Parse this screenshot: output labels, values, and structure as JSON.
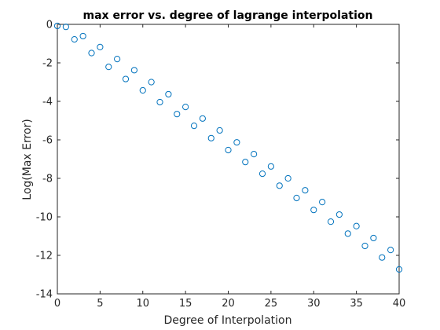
{
  "colors": {
    "marker": "#0072BD",
    "axis": "#262626",
    "background": "#ffffff"
  },
  "chart_data": {
    "type": "scatter",
    "title": "max error vs. degree of lagrange interpolation",
    "xlabel": "Degree of Interpolation",
    "ylabel": "Log(Max Error)",
    "xlim": [
      0,
      40
    ],
    "ylim": [
      -14,
      0
    ],
    "xticks": [
      0,
      5,
      10,
      15,
      20,
      25,
      30,
      35,
      40
    ],
    "yticks": [
      0,
      -2,
      -4,
      -6,
      -8,
      -10,
      -12,
      -14
    ],
    "xtick_labels": [
      "0",
      "5",
      "10",
      "15",
      "20",
      "25",
      "30",
      "35",
      "40"
    ],
    "ytick_labels": [
      "0",
      "-2",
      "-4",
      "-6",
      "-8",
      "-10",
      "-12",
      "-14"
    ],
    "grid": false,
    "marker": "o",
    "series": [
      {
        "name": "max error",
        "x": [
          0,
          1,
          2,
          3,
          4,
          5,
          6,
          7,
          8,
          9,
          10,
          11,
          12,
          13,
          14,
          15,
          16,
          17,
          18,
          19,
          20,
          21,
          22,
          23,
          24,
          25,
          26,
          27,
          28,
          29,
          30,
          31,
          32,
          33,
          34,
          35,
          36,
          37,
          38,
          39,
          40
        ],
        "y": [
          -0.08,
          -0.13,
          -0.78,
          -0.61,
          -1.49,
          -1.18,
          -2.21,
          -1.8,
          -2.84,
          -2.38,
          -3.43,
          -3.0,
          -4.04,
          -3.63,
          -4.66,
          -4.29,
          -5.27,
          -4.89,
          -5.91,
          -5.51,
          -6.53,
          -6.13,
          -7.15,
          -6.74,
          -7.76,
          -7.38,
          -8.38,
          -8.0,
          -9.02,
          -8.62,
          -9.64,
          -9.23,
          -10.25,
          -9.88,
          -10.87,
          -10.48,
          -11.51,
          -11.1,
          -12.11,
          -11.72,
          -12.73
        ]
      }
    ]
  }
}
